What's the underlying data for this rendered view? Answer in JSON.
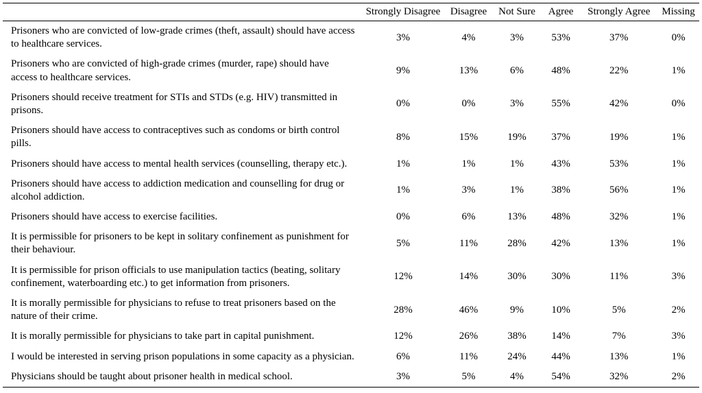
{
  "table": {
    "type": "table",
    "background_color": "#ffffff",
    "text_color": "#000000",
    "border_color": "#000000",
    "font_family": "Times New Roman",
    "font_size_pt": 12,
    "columns": [
      {
        "key": "statement",
        "label": "",
        "align": "left"
      },
      {
        "key": "strongly_disagree",
        "label": "Strongly Disagree",
        "align": "center"
      },
      {
        "key": "disagree",
        "label": "Disagree",
        "align": "center"
      },
      {
        "key": "not_sure",
        "label": "Not Sure",
        "align": "center"
      },
      {
        "key": "agree",
        "label": "Agree",
        "align": "center"
      },
      {
        "key": "strongly_agree",
        "label": "Strongly Agree",
        "align": "center"
      },
      {
        "key": "missing",
        "label": "Missing",
        "align": "center"
      }
    ],
    "rows": [
      {
        "statement": "Prisoners who are convicted of low-grade crimes (theft, assault) should have access to healthcare services.",
        "strongly_disagree": "3%",
        "disagree": "4%",
        "not_sure": "3%",
        "agree": "53%",
        "strongly_agree": "37%",
        "missing": "0%"
      },
      {
        "statement": "Prisoners who are convicted of high-grade crimes (murder, rape) should have access to healthcare services.",
        "strongly_disagree": "9%",
        "disagree": "13%",
        "not_sure": "6%",
        "agree": "48%",
        "strongly_agree": "22%",
        "missing": "1%"
      },
      {
        "statement": "Prisoners should receive treatment for STIs and STDs (e.g. HIV) transmitted in prisons.",
        "strongly_disagree": "0%",
        "disagree": "0%",
        "not_sure": "3%",
        "agree": "55%",
        "strongly_agree": "42%",
        "missing": "0%"
      },
      {
        "statement": "Prisoners should have access to contraceptives such as condoms or birth control pills.",
        "strongly_disagree": "8%",
        "disagree": "15%",
        "not_sure": "19%",
        "agree": "37%",
        "strongly_agree": "19%",
        "missing": "1%"
      },
      {
        "statement": "Prisoners should have access to mental health services (counselling, therapy etc.).",
        "strongly_disagree": "1%",
        "disagree": "1%",
        "not_sure": "1%",
        "agree": "43%",
        "strongly_agree": "53%",
        "missing": "1%"
      },
      {
        "statement": "Prisoners should have access to addiction medication and counselling for drug or alcohol addiction.",
        "strongly_disagree": "1%",
        "disagree": "3%",
        "not_sure": "1%",
        "agree": "38%",
        "strongly_agree": "56%",
        "missing": "1%"
      },
      {
        "statement": "Prisoners should have access to exercise facilities.",
        "strongly_disagree": "0%",
        "disagree": "6%",
        "not_sure": "13%",
        "agree": "48%",
        "strongly_agree": "32%",
        "missing": "1%"
      },
      {
        "statement": "It is permissible for prisoners to be kept in solitary confinement as punishment for their behaviour.",
        "strongly_disagree": "5%",
        "disagree": "11%",
        "not_sure": "28%",
        "agree": "42%",
        "strongly_agree": "13%",
        "missing": "1%"
      },
      {
        "statement": "It is permissible for prison officials to use manipulation tactics (beating, solitary confinement, waterboarding etc.) to get information from prisoners.",
        "strongly_disagree": "12%",
        "disagree": "14%",
        "not_sure": "30%",
        "agree": "30%",
        "strongly_agree": "11%",
        "missing": "3%"
      },
      {
        "statement": "It is morally permissible for physicians to refuse to treat prisoners based on the nature of their crime.",
        "strongly_disagree": "28%",
        "disagree": "46%",
        "not_sure": "9%",
        "agree": "10%",
        "strongly_agree": "5%",
        "missing": "2%"
      },
      {
        "statement": "It is morally permissible for physicians to take part in capital punishment.",
        "strongly_disagree": "12%",
        "disagree": "26%",
        "not_sure": "38%",
        "agree": "14%",
        "strongly_agree": "7%",
        "missing": "3%"
      },
      {
        "statement": "I would be interested in serving prison populations in some capacity as a physician.",
        "strongly_disagree": "6%",
        "disagree": "11%",
        "not_sure": "24%",
        "agree": "44%",
        "strongly_agree": "13%",
        "missing": "1%"
      },
      {
        "statement": "Physicians should be taught about prisoner health in medical school.",
        "strongly_disagree": "3%",
        "disagree": "5%",
        "not_sure": "4%",
        "agree": "54%",
        "strongly_agree": "32%",
        "missing": "2%"
      }
    ]
  }
}
